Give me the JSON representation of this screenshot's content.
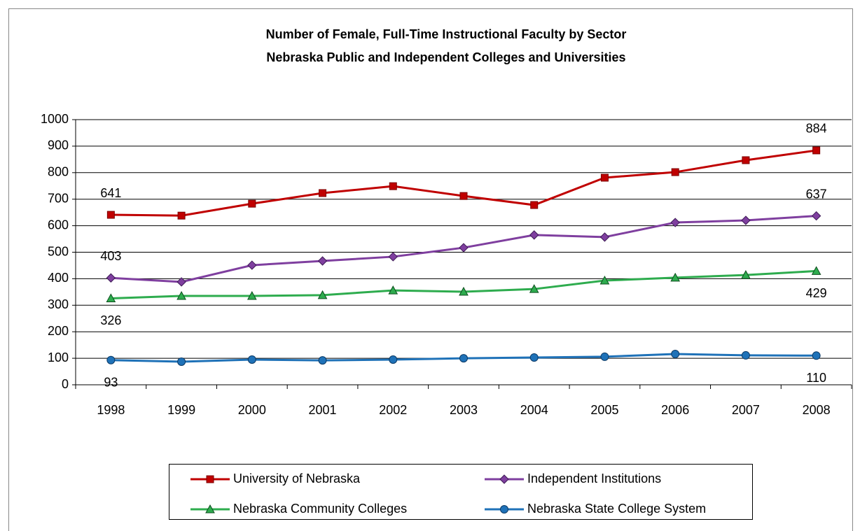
{
  "chart_data": {
    "type": "line",
    "title": "Number of Female, Full-Time Instructional Faculty by Sector",
    "subtitle": "Nebraska Public and Independent Colleges and Universities",
    "categories": [
      "1998",
      "1999",
      "2000",
      "2001",
      "2002",
      "2003",
      "2004",
      "2005",
      "2006",
      "2007",
      "2008"
    ],
    "series": [
      {
        "name": "University of Nebraska",
        "color": "#c00000",
        "marker": "square",
        "values": [
          641,
          638,
          683,
          723,
          749,
          712,
          678,
          781,
          802,
          847,
          884
        ]
      },
      {
        "name": "Independent Institutions",
        "color": "#7f3f9f",
        "marker": "diamond",
        "values": [
          403,
          388,
          451,
          467,
          483,
          517,
          565,
          557,
          612,
          620,
          637
        ]
      },
      {
        "name": "Nebraska Community Colleges",
        "color": "#2eac4e",
        "marker": "triangle",
        "values": [
          326,
          335,
          335,
          338,
          356,
          351,
          361,
          393,
          404,
          414,
          429
        ]
      },
      {
        "name": "Nebraska State College System",
        "color": "#1f72b8",
        "marker": "circle",
        "values": [
          93,
          87,
          95,
          92,
          95,
          100,
          103,
          106,
          116,
          111,
          110
        ]
      }
    ],
    "ylim": [
      0,
      1000
    ],
    "yticks": [
      0,
      100,
      200,
      300,
      400,
      500,
      600,
      700,
      800,
      900,
      1000
    ],
    "grid": true
  }
}
